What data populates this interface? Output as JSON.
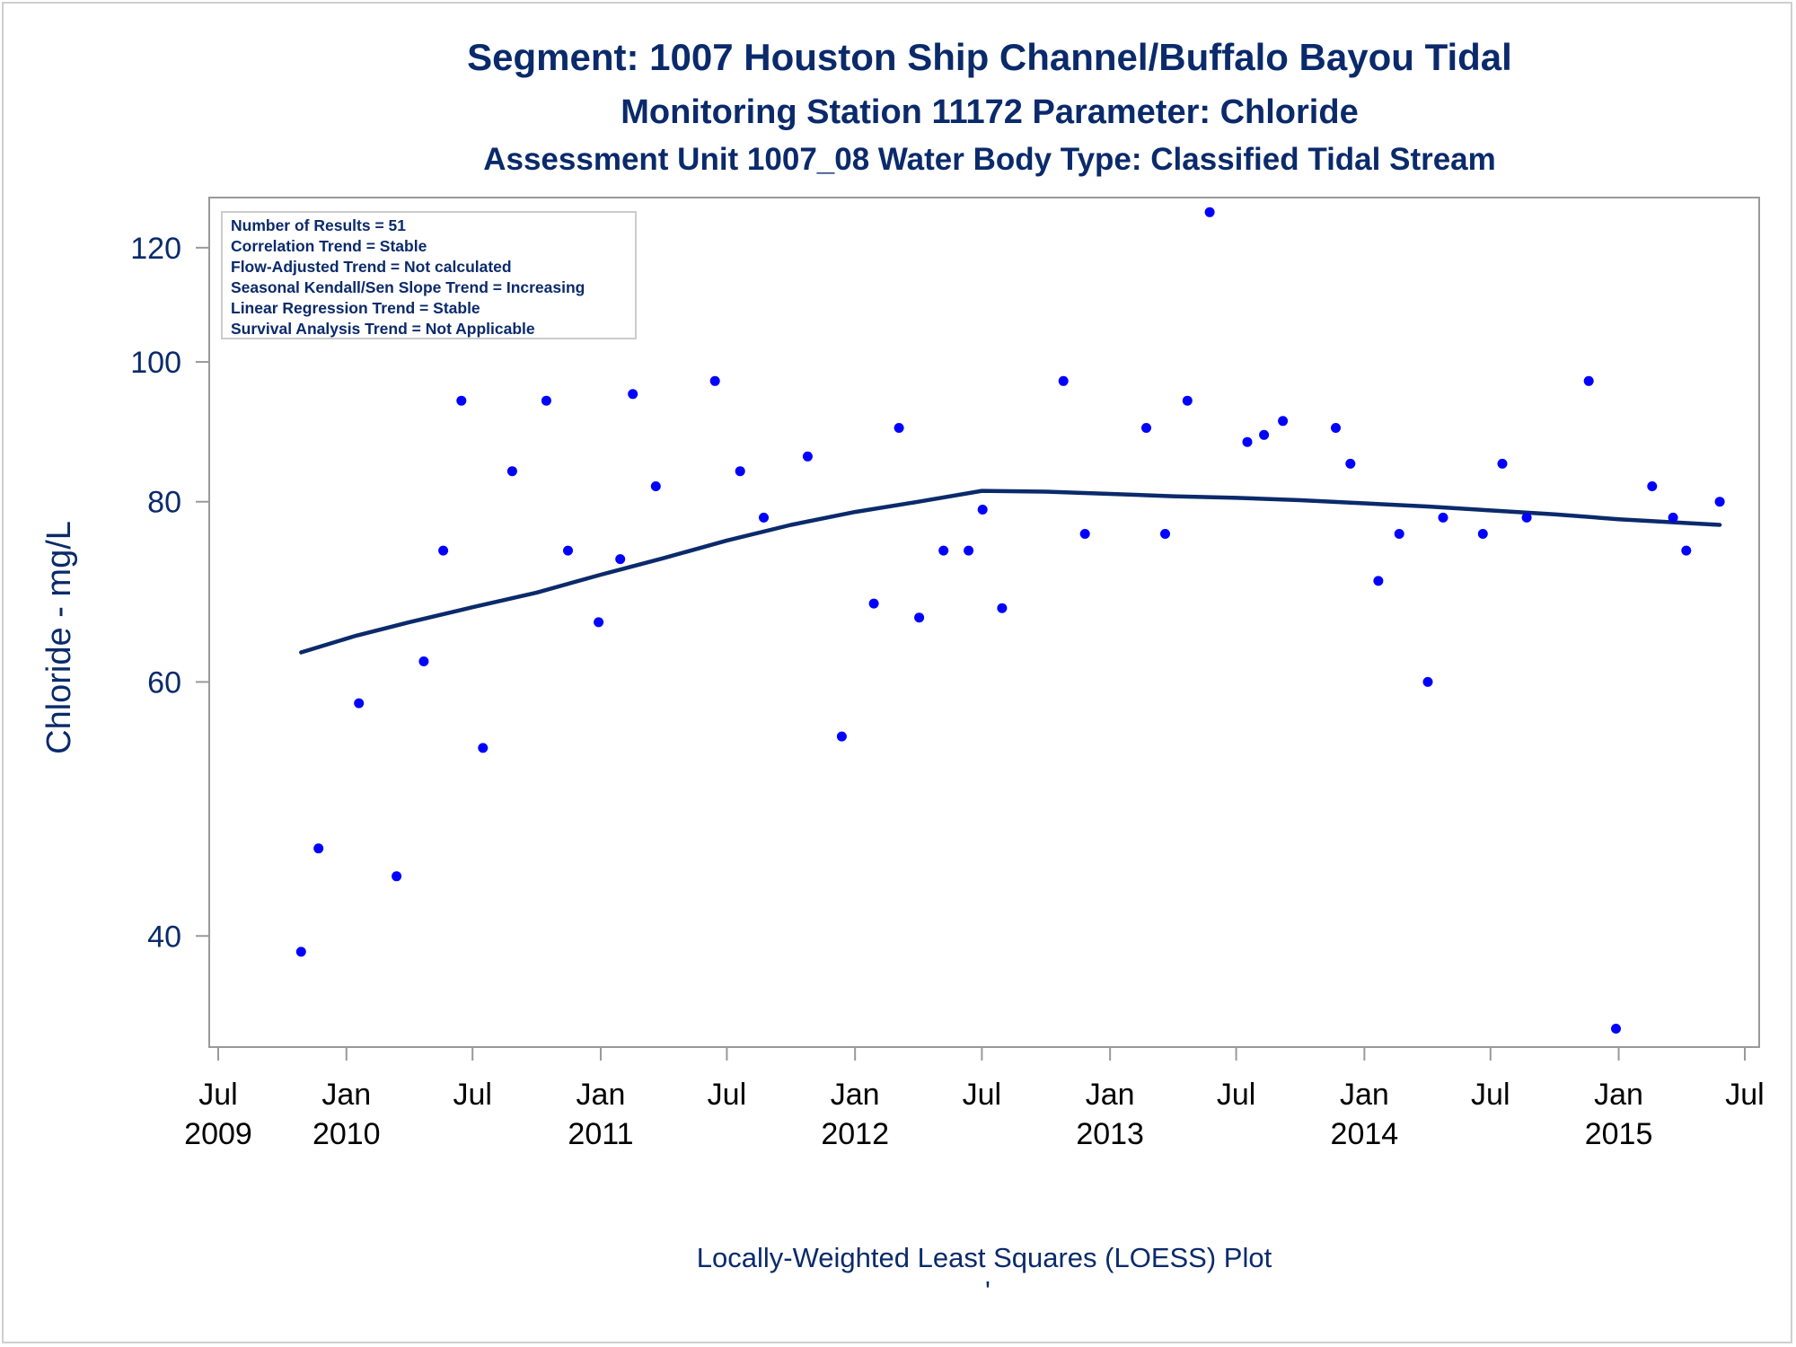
{
  "titles": {
    "line1": "Segment: 1007  Houston Ship Channel/Buffalo Bayou Tidal",
    "line2": "Monitoring Station 11172 Parameter: Chloride",
    "line3": "Assessment Unit 1007_08   Water Body Type: Classified Tidal Stream"
  },
  "stats_box": [
    "Number of Results = 51",
    "Correlation Trend = Stable",
    "Flow-Adjusted Trend = Not calculated",
    "Seasonal Kendall/Sen Slope Trend = Increasing",
    "Linear Regression Trend = Stable",
    "Survival Analysis Trend = Not Applicable"
  ],
  "footnote": "Locally-Weighted Least Squares (LOESS) Plot",
  "footnote_mark": "'",
  "colors": {
    "points": "#0000ff",
    "loess_line": "#0a2a6b",
    "text": "#0a2a6b",
    "axis": "#999999"
  },
  "chart_data": {
    "type": "scatter",
    "ylabel": "Chloride - mg/L",
    "y_scale": "log",
    "ylim": [
      33.5,
      130
    ],
    "xlim": [
      "2009-07-01",
      "2015-07-01"
    ],
    "y_ticks": [
      40,
      60,
      80,
      100,
      120
    ],
    "x_ticks": [
      {
        "date": "2009-07-01",
        "month": "Jul",
        "year": "2009"
      },
      {
        "date": "2010-01-01",
        "month": "Jan",
        "year": "2010"
      },
      {
        "date": "2010-07-01",
        "month": "Jul",
        "year": ""
      },
      {
        "date": "2011-01-01",
        "month": "Jan",
        "year": "2011"
      },
      {
        "date": "2011-07-01",
        "month": "Jul",
        "year": ""
      },
      {
        "date": "2012-01-01",
        "month": "Jan",
        "year": "2012"
      },
      {
        "date": "2012-07-01",
        "month": "Jul",
        "year": ""
      },
      {
        "date": "2013-01-01",
        "month": "Jan",
        "year": "2013"
      },
      {
        "date": "2013-07-01",
        "month": "Jul",
        "year": ""
      },
      {
        "date": "2014-01-01",
        "month": "Jan",
        "year": "2014"
      },
      {
        "date": "2014-07-01",
        "month": "Jul",
        "year": ""
      },
      {
        "date": "2015-01-01",
        "month": "Jan",
        "year": "2015"
      },
      {
        "date": "2015-07-01",
        "month": "Jul",
        "year": ""
      }
    ],
    "legend": "top-left",
    "grid": false,
    "points": [
      {
        "x": "2009-10-28",
        "y": 39
      },
      {
        "x": "2009-11-22",
        "y": 46
      },
      {
        "x": "2010-01-19",
        "y": 58
      },
      {
        "x": "2010-03-14",
        "y": 44
      },
      {
        "x": "2010-04-22",
        "y": 62
      },
      {
        "x": "2010-05-20",
        "y": 74
      },
      {
        "x": "2010-06-15",
        "y": 94
      },
      {
        "x": "2010-07-16",
        "y": 54
      },
      {
        "x": "2010-08-27",
        "y": 84
      },
      {
        "x": "2010-10-15",
        "y": 94
      },
      {
        "x": "2010-11-15",
        "y": 74
      },
      {
        "x": "2010-12-29",
        "y": 66
      },
      {
        "x": "2011-01-29",
        "y": 73
      },
      {
        "x": "2011-02-16",
        "y": 95
      },
      {
        "x": "2011-03-21",
        "y": 82
      },
      {
        "x": "2011-06-14",
        "y": 97
      },
      {
        "x": "2011-07-20",
        "y": 84
      },
      {
        "x": "2011-08-23",
        "y": 78
      },
      {
        "x": "2011-10-25",
        "y": 86
      },
      {
        "x": "2011-12-13",
        "y": 55
      },
      {
        "x": "2012-01-28",
        "y": 68
      },
      {
        "x": "2012-03-04",
        "y": 90
      },
      {
        "x": "2012-04-02",
        "y": 66.5
      },
      {
        "x": "2012-05-07",
        "y": 74
      },
      {
        "x": "2012-06-12",
        "y": 74
      },
      {
        "x": "2012-07-02",
        "y": 79
      },
      {
        "x": "2012-07-30",
        "y": 67.5
      },
      {
        "x": "2012-10-26",
        "y": 97
      },
      {
        "x": "2012-11-26",
        "y": 76
      },
      {
        "x": "2013-02-22",
        "y": 90
      },
      {
        "x": "2013-03-21",
        "y": 76
      },
      {
        "x": "2013-04-22",
        "y": 94
      },
      {
        "x": "2013-05-24",
        "y": 127
      },
      {
        "x": "2013-07-17",
        "y": 88
      },
      {
        "x": "2013-08-10",
        "y": 89
      },
      {
        "x": "2013-09-06",
        "y": 91
      },
      {
        "x": "2013-11-21",
        "y": 90
      },
      {
        "x": "2013-12-12",
        "y": 85
      },
      {
        "x": "2014-01-21",
        "y": 70.5
      },
      {
        "x": "2014-02-20",
        "y": 76
      },
      {
        "x": "2014-04-02",
        "y": 60
      },
      {
        "x": "2014-04-24",
        "y": 78
      },
      {
        "x": "2014-06-20",
        "y": 76
      },
      {
        "x": "2014-07-18",
        "y": 85
      },
      {
        "x": "2014-08-22",
        "y": 78
      },
      {
        "x": "2014-11-19",
        "y": 97
      },
      {
        "x": "2014-12-28",
        "y": 34.5
      },
      {
        "x": "2015-02-18",
        "y": 82
      },
      {
        "x": "2015-03-20",
        "y": 78
      },
      {
        "x": "2015-04-08",
        "y": 74
      },
      {
        "x": "2015-05-26",
        "y": 80
      }
    ],
    "loess": [
      {
        "x": "2009-10-28",
        "y": 62.9
      },
      {
        "x": "2010-01-15",
        "y": 64.6
      },
      {
        "x": "2010-04-01",
        "y": 66.0
      },
      {
        "x": "2010-07-01",
        "y": 67.6
      },
      {
        "x": "2010-10-01",
        "y": 69.2
      },
      {
        "x": "2011-01-01",
        "y": 71.2
      },
      {
        "x": "2011-04-01",
        "y": 73.1
      },
      {
        "x": "2011-07-01",
        "y": 75.2
      },
      {
        "x": "2011-10-01",
        "y": 77.1
      },
      {
        "x": "2012-01-01",
        "y": 78.7
      },
      {
        "x": "2012-04-01",
        "y": 80.0
      },
      {
        "x": "2012-07-01",
        "y": 81.4
      },
      {
        "x": "2012-10-01",
        "y": 81.3
      },
      {
        "x": "2013-01-01",
        "y": 81.0
      },
      {
        "x": "2013-04-01",
        "y": 80.7
      },
      {
        "x": "2013-07-01",
        "y": 80.5
      },
      {
        "x": "2013-10-01",
        "y": 80.2
      },
      {
        "x": "2014-01-01",
        "y": 79.8
      },
      {
        "x": "2014-04-01",
        "y": 79.4
      },
      {
        "x": "2014-07-01",
        "y": 78.9
      },
      {
        "x": "2014-10-01",
        "y": 78.4
      },
      {
        "x": "2015-01-01",
        "y": 77.8
      },
      {
        "x": "2015-05-26",
        "y": 77.1
      }
    ]
  }
}
